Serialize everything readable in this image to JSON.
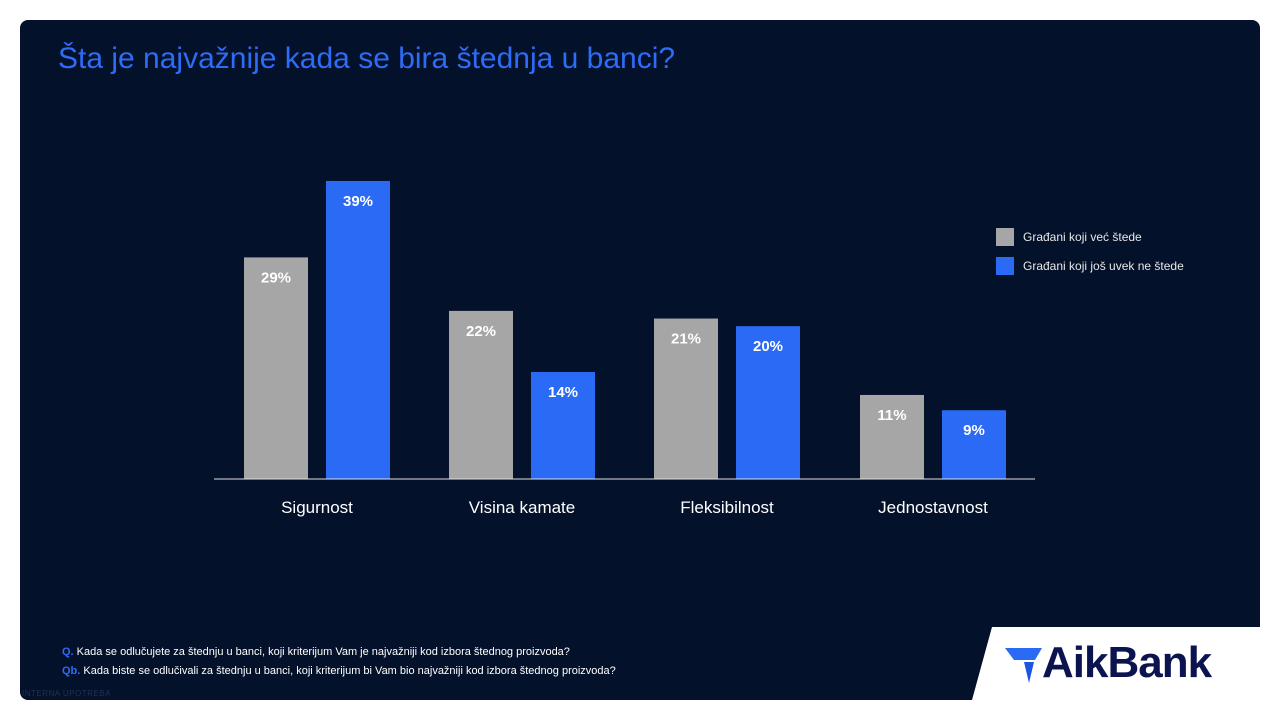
{
  "title": "Šta je najvažnije kada se bira štednja u banci?",
  "chart_data": {
    "type": "bar",
    "categories": [
      "Sigurnost",
      "Visina kamate",
      "Fleksibilnost",
      "Jednostavnost"
    ],
    "series": [
      {
        "name": "Građani koji već štede",
        "values": [
          29,
          22,
          21,
          11
        ],
        "color": "#a6a6a6"
      },
      {
        "name": "Građani koji još uvek ne štede",
        "values": [
          39,
          14,
          20,
          9
        ],
        "color": "#2a6af5"
      }
    ],
    "value_suffix": "%",
    "ylim": [
      0,
      39
    ],
    "grid": false,
    "legend": "right"
  },
  "legend": [
    {
      "label": "Građani koji već štede",
      "color": "#a6a6a6"
    },
    {
      "label": "Građani koji još uvek ne štede",
      "color": "#2a6af5"
    }
  ],
  "footer": {
    "q1_prefix": "Q.",
    "q1_text": " Kada se odlučujete za štednju u banci, koji kriterijum Vam je najvažniji kod izbora štednog proizvoda?",
    "q2_prefix": "Qb.",
    "q2_text": " Kada biste se odlučivali za štednju u banci, koji kriterijum bi Vam bio najvažniji kod izbora štednog proizvoda?",
    "internal": "INTERNA UPOTREBA"
  },
  "logo": {
    "text": "AikBank",
    "accent": "#2a6af5"
  }
}
